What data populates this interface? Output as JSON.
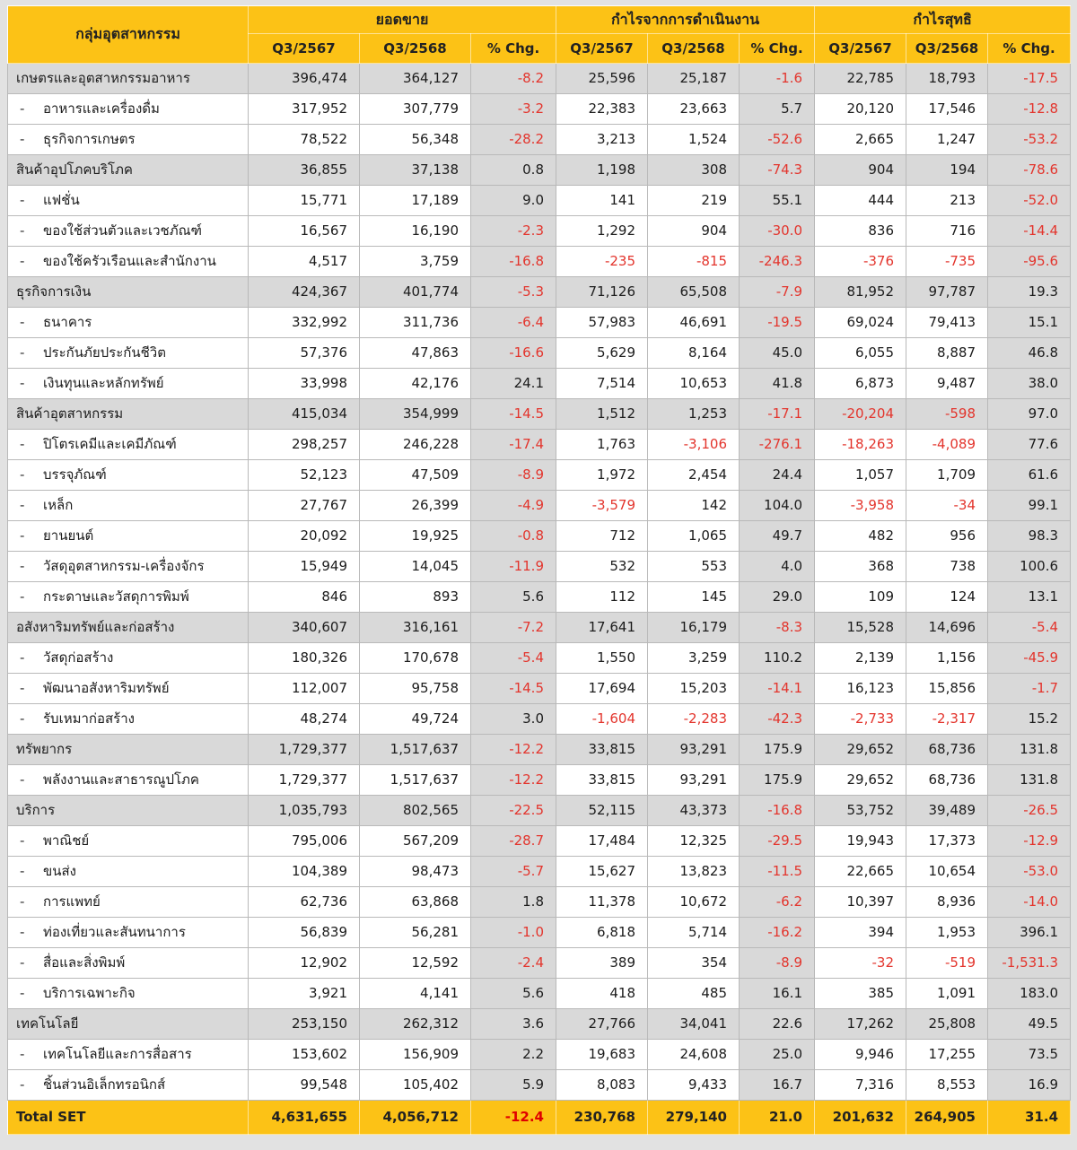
{
  "colors": {
    "header_yellow": "#fcc216",
    "section_row_gray": "#d9d9d9",
    "pct_column_gray": "#d9d9d9",
    "negative_red": "#e3342c",
    "page_background": "#e2e2e2"
  },
  "chart_data": {
    "type": "table",
    "corner_label": "กลุ่มอุตสาหกรรม",
    "groups": [
      {
        "label": "ยอดขาย",
        "cols": [
          "Q3/2567",
          "Q3/2568",
          "% Chg."
        ]
      },
      {
        "label": "กำไรจากการดำเนินงาน",
        "cols": [
          "Q3/2567",
          "Q3/2568",
          "% Chg."
        ]
      },
      {
        "label": "กำไรสุทธิ",
        "cols": [
          "Q3/2567",
          "Q3/2568",
          "% Chg."
        ]
      }
    ],
    "rows": [
      {
        "label": "เกษตรและอุตสาหกรรมอาหาร",
        "type": "section",
        "values": [
          "396,474",
          "364,127",
          "-8.2",
          "25,596",
          "25,187",
          "-1.6",
          "22,785",
          "18,793",
          "-17.5"
        ]
      },
      {
        "label": "อาหารและเครื่องดื่ม",
        "type": "sub",
        "values": [
          "317,952",
          "307,779",
          "-3.2",
          "22,383",
          "23,663",
          "5.7",
          "20,120",
          "17,546",
          "-12.8"
        ]
      },
      {
        "label": "ธุรกิจการเกษตร",
        "type": "sub",
        "values": [
          "78,522",
          "56,348",
          "-28.2",
          "3,213",
          "1,524",
          "-52.6",
          "2,665",
          "1,247",
          "-53.2"
        ]
      },
      {
        "label": "สินค้าอุปโภคบริโภค",
        "type": "section",
        "values": [
          "36,855",
          "37,138",
          "0.8",
          "1,198",
          "308",
          "-74.3",
          "904",
          "194",
          "-78.6"
        ]
      },
      {
        "label": "แฟชั่น",
        "type": "sub",
        "values": [
          "15,771",
          "17,189",
          "9.0",
          "141",
          "219",
          "55.1",
          "444",
          "213",
          "-52.0"
        ]
      },
      {
        "label": "ของใช้ส่วนตัวและเวชภัณฑ์",
        "type": "sub",
        "values": [
          "16,567",
          "16,190",
          "-2.3",
          "1,292",
          "904",
          "-30.0",
          "836",
          "716",
          "-14.4"
        ]
      },
      {
        "label": "ของใช้ครัวเรือนและสำนักงาน",
        "type": "sub",
        "values": [
          "4,517",
          "3,759",
          "-16.8",
          "-235",
          "-815",
          "-246.3",
          "-376",
          "-735",
          "-95.6"
        ]
      },
      {
        "label": "ธุรกิจการเงิน",
        "type": "section",
        "values": [
          "424,367",
          "401,774",
          "-5.3",
          "71,126",
          "65,508",
          "-7.9",
          "81,952",
          "97,787",
          "19.3"
        ]
      },
      {
        "label": "ธนาคาร",
        "type": "sub",
        "values": [
          "332,992",
          "311,736",
          "-6.4",
          "57,983",
          "46,691",
          "-19.5",
          "69,024",
          "79,413",
          "15.1"
        ]
      },
      {
        "label": "ประกันภัยประกันชีวิต",
        "type": "sub",
        "values": [
          "57,376",
          "47,863",
          "-16.6",
          "5,629",
          "8,164",
          "45.0",
          "6,055",
          "8,887",
          "46.8"
        ]
      },
      {
        "label": "เงินทุนและหลักทรัพย์",
        "type": "sub",
        "values": [
          "33,998",
          "42,176",
          "24.1",
          "7,514",
          "10,653",
          "41.8",
          "6,873",
          "9,487",
          "38.0"
        ]
      },
      {
        "label": "สินค้าอุตสาหกรรม",
        "type": "section",
        "values": [
          "415,034",
          "354,999",
          "-14.5",
          "1,512",
          "1,253",
          "-17.1",
          "-20,204",
          "-598",
          "97.0"
        ]
      },
      {
        "label": "ปิโตรเคมีและเคมีภัณฑ์",
        "type": "sub",
        "values": [
          "298,257",
          "246,228",
          "-17.4",
          "1,763",
          "-3,106",
          "-276.1",
          "-18,263",
          "-4,089",
          "77.6"
        ]
      },
      {
        "label": "บรรจุภัณฑ์",
        "type": "sub",
        "values": [
          "52,123",
          "47,509",
          "-8.9",
          "1,972",
          "2,454",
          "24.4",
          "1,057",
          "1,709",
          "61.6"
        ]
      },
      {
        "label": "เหล็ก",
        "type": "sub",
        "values": [
          "27,767",
          "26,399",
          "-4.9",
          "-3,579",
          "142",
          "104.0",
          "-3,958",
          "-34",
          "99.1"
        ]
      },
      {
        "label": "ยานยนต์",
        "type": "sub",
        "values": [
          "20,092",
          "19,925",
          "-0.8",
          "712",
          "1,065",
          "49.7",
          "482",
          "956",
          "98.3"
        ]
      },
      {
        "label": "วัสดุอุตสาหกรรม-เครื่องจักร",
        "type": "sub",
        "values": [
          "15,949",
          "14,045",
          "-11.9",
          "532",
          "553",
          "4.0",
          "368",
          "738",
          "100.6"
        ]
      },
      {
        "label": "กระดาษและวัสดุการพิมพ์",
        "type": "sub",
        "values": [
          "846",
          "893",
          "5.6",
          "112",
          "145",
          "29.0",
          "109",
          "124",
          "13.1"
        ]
      },
      {
        "label": "อสังหาริมทรัพย์และก่อสร้าง",
        "type": "section",
        "values": [
          "340,607",
          "316,161",
          "-7.2",
          "17,641",
          "16,179",
          "-8.3",
          "15,528",
          "14,696",
          "-5.4"
        ]
      },
      {
        "label": "วัสดุก่อสร้าง",
        "type": "sub",
        "values": [
          "180,326",
          "170,678",
          "-5.4",
          "1,550",
          "3,259",
          "110.2",
          "2,139",
          "1,156",
          "-45.9"
        ]
      },
      {
        "label": "พัฒนาอสังหาริมทรัพย์",
        "type": "sub",
        "values": [
          "112,007",
          "95,758",
          "-14.5",
          "17,694",
          "15,203",
          "-14.1",
          "16,123",
          "15,856",
          "-1.7"
        ]
      },
      {
        "label": "รับเหมาก่อสร้าง",
        "type": "sub",
        "values": [
          "48,274",
          "49,724",
          "3.0",
          "-1,604",
          "-2,283",
          "-42.3",
          "-2,733",
          "-2,317",
          "15.2"
        ]
      },
      {
        "label": "ทรัพยากร",
        "type": "section",
        "values": [
          "1,729,377",
          "1,517,637",
          "-12.2",
          "33,815",
          "93,291",
          "175.9",
          "29,652",
          "68,736",
          "131.8"
        ]
      },
      {
        "label": "พลังงานและสาธารณูปโภค",
        "type": "sub",
        "values": [
          "1,729,377",
          "1,517,637",
          "-12.2",
          "33,815",
          "93,291",
          "175.9",
          "29,652",
          "68,736",
          "131.8"
        ]
      },
      {
        "label": "บริการ",
        "type": "section",
        "values": [
          "1,035,793",
          "802,565",
          "-22.5",
          "52,115",
          "43,373",
          "-16.8",
          "53,752",
          "39,489",
          "-26.5"
        ]
      },
      {
        "label": "พาณิชย์",
        "type": "sub",
        "values": [
          "795,006",
          "567,209",
          "-28.7",
          "17,484",
          "12,325",
          "-29.5",
          "19,943",
          "17,373",
          "-12.9"
        ]
      },
      {
        "label": "ขนส่ง",
        "type": "sub",
        "values": [
          "104,389",
          "98,473",
          "-5.7",
          "15,627",
          "13,823",
          "-11.5",
          "22,665",
          "10,654",
          "-53.0"
        ]
      },
      {
        "label": "การแพทย์",
        "type": "sub",
        "values": [
          "62,736",
          "63,868",
          "1.8",
          "11,378",
          "10,672",
          "-6.2",
          "10,397",
          "8,936",
          "-14.0"
        ]
      },
      {
        "label": "ท่องเที่ยวและสันทนาการ",
        "type": "sub",
        "values": [
          "56,839",
          "56,281",
          "-1.0",
          "6,818",
          "5,714",
          "-16.2",
          "394",
          "1,953",
          "396.1"
        ]
      },
      {
        "label": "สื่อและสิ่งพิมพ์",
        "type": "sub",
        "values": [
          "12,902",
          "12,592",
          "-2.4",
          "389",
          "354",
          "-8.9",
          "-32",
          "-519",
          "-1,531.3"
        ]
      },
      {
        "label": "บริการเฉพาะกิจ",
        "type": "sub",
        "values": [
          "3,921",
          "4,141",
          "5.6",
          "418",
          "485",
          "16.1",
          "385",
          "1,091",
          "183.0"
        ]
      },
      {
        "label": "เทคโนโลยี",
        "type": "section",
        "values": [
          "253,150",
          "262,312",
          "3.6",
          "27,766",
          "34,041",
          "22.6",
          "17,262",
          "25,808",
          "49.5"
        ]
      },
      {
        "label": "เทคโนโลยีและการสื่อสาร",
        "type": "sub",
        "values": [
          "153,602",
          "156,909",
          "2.2",
          "19,683",
          "24,608",
          "25.0",
          "9,946",
          "17,255",
          "73.5"
        ]
      },
      {
        "label": "ชิ้นส่วนอิเล็กทรอนิกส์",
        "type": "sub",
        "values": [
          "99,548",
          "105,402",
          "5.9",
          "8,083",
          "9,433",
          "16.7",
          "7,316",
          "8,553",
          "16.9"
        ]
      }
    ],
    "footer": {
      "label": "Total SET",
      "values": [
        "4,631,655",
        "4,056,712",
        "-12.4",
        "230,768",
        "279,140",
        "21.0",
        "201,632",
        "264,905",
        "31.4"
      ]
    }
  }
}
